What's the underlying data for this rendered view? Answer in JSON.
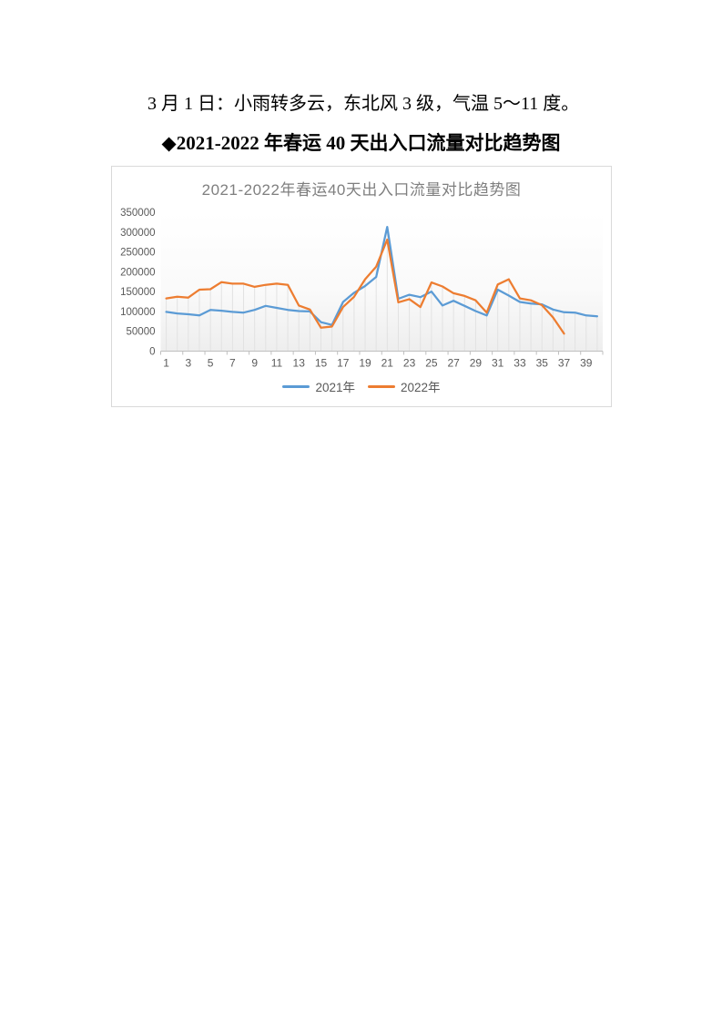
{
  "page": {
    "weather_line": "3 月 1 日：小雨转多云，东北风 3 级，气温 5～11 度。",
    "section_heading": "◆2021-2022 年春运 40 天出入口流量对比趋势图"
  },
  "colors": {
    "series_2021": "#5B9BD5",
    "series_2022": "#ED7D31",
    "chart_title_gray": "#7f7f7f",
    "axis_label_gray": "#595959",
    "axis_line_gray": "#bfbfbf",
    "drop_line_gray": "#e2e2e2",
    "chart_border_gray": "#d9d9d9"
  },
  "chart_data": {
    "type": "line",
    "title": "2021-2022年春运40天出入口流量对比趋势图",
    "xlabel": "",
    "ylabel": "",
    "x": [
      1,
      2,
      3,
      4,
      5,
      6,
      7,
      8,
      9,
      10,
      11,
      12,
      13,
      14,
      15,
      16,
      17,
      18,
      19,
      20,
      21,
      22,
      23,
      24,
      25,
      26,
      27,
      28,
      29,
      30,
      31,
      32,
      33,
      34,
      35,
      36,
      37,
      38,
      39,
      40
    ],
    "x_tick_labels": [
      "1",
      "3",
      "5",
      "7",
      "9",
      "11",
      "13",
      "15",
      "17",
      "19",
      "21",
      "23",
      "25",
      "27",
      "29",
      "31",
      "33",
      "35",
      "37",
      "39"
    ],
    "ylim": [
      0,
      350000
    ],
    "y_ticks": [
      0,
      50000,
      100000,
      150000,
      200000,
      250000,
      300000,
      350000
    ],
    "grid": "vertical-drop-lines",
    "legend_position": "bottom",
    "series": [
      {
        "name": "2021年",
        "color": "#5B9BD5",
        "values": [
          99000,
          95000,
          93000,
          90000,
          104000,
          102000,
          99000,
          97000,
          104000,
          114000,
          109000,
          104000,
          101000,
          100000,
          73000,
          66000,
          124000,
          147000,
          164000,
          187000,
          313000,
          132000,
          142000,
          136000,
          150000,
          115000,
          127000,
          114000,
          101000,
          90000,
          155000,
          140000,
          124000,
          120000,
          118000,
          105000,
          98000,
          97000,
          90000,
          88000
        ]
      },
      {
        "name": "2022年",
        "color": "#ED7D31",
        "values": [
          133000,
          137000,
          135000,
          155000,
          156000,
          174000,
          170000,
          170000,
          162000,
          167000,
          170000,
          167000,
          115000,
          105000,
          59000,
          62000,
          111000,
          137000,
          181000,
          213000,
          281000,
          123000,
          131000,
          111000,
          173000,
          163000,
          146000,
          139000,
          128000,
          97000,
          168000,
          181000,
          133000,
          128000,
          116000,
          85000,
          44000
        ]
      }
    ]
  }
}
